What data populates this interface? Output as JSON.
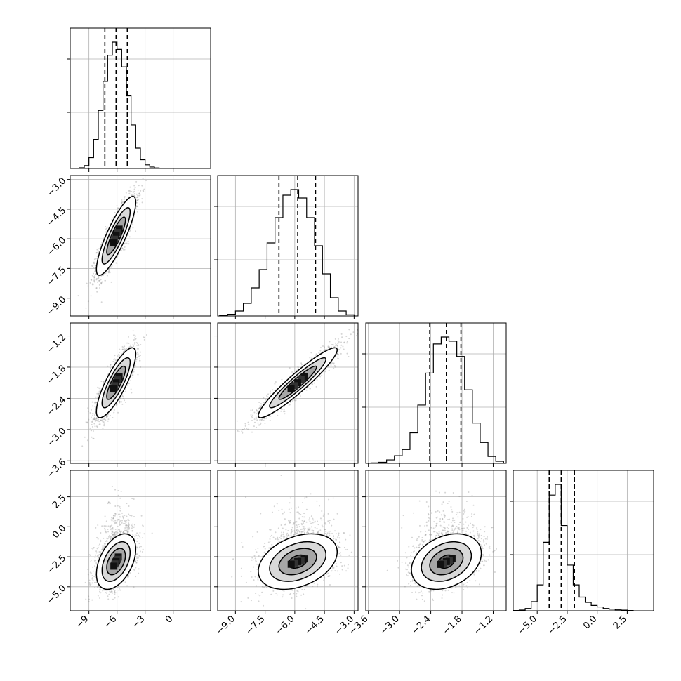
{
  "chart_data": {
    "type": "corner",
    "grid": true,
    "scatter_color": "#888888",
    "contour_color": "#000000",
    "line_color": "#000000",
    "variables": [
      {
        "range": [
          -11,
          4
        ],
        "ticks": [
          -9,
          -6,
          -3,
          0
        ],
        "tick_labels": [
          "−9",
          "−6",
          "−3",
          "0"
        ],
        "quantiles": [
          -7.3,
          -6.1,
          -4.9
        ],
        "mean": -6.1,
        "sd": 1.0
      },
      {
        "range": [
          -9.9,
          -2.8
        ],
        "ticks": [
          -9.0,
          -7.5,
          -6.0,
          -4.5,
          -3.0
        ],
        "tick_labels": [
          "−9.0",
          "−7.5",
          "−6.0",
          "−4.5",
          "−3.0"
        ],
        "quantiles": [
          -6.8,
          -5.85,
          -4.95
        ],
        "mean": -5.85,
        "sd": 0.95
      },
      {
        "range": [
          -3.65,
          -0.95
        ],
        "ticks": [
          -3.6,
          -3.0,
          -2.4,
          -1.8,
          -1.2
        ],
        "tick_labels": [
          "−3.6",
          "−3.0",
          "−2.4",
          "−1.8",
          "−1.2"
        ],
        "quantiles": [
          -2.42,
          -2.1,
          -1.82
        ],
        "mean": -2.1,
        "sd": 0.32
      },
      {
        "range": [
          -7,
          4.7
        ],
        "ticks": [
          -5.0,
          -2.5,
          0.0,
          2.5
        ],
        "tick_labels": [
          "−5.0",
          "−2.5",
          "0.0",
          "2.5"
        ],
        "quantiles": [
          -4.0,
          -3.0,
          -1.9
        ],
        "mean": -2.9,
        "sd": 1.1
      }
    ],
    "panels": [
      {
        "row": 0,
        "col": 0,
        "type": "histogram",
        "bin_edges": [
          -10.5,
          -10,
          -9.5,
          -9,
          -8.5,
          -8,
          -7.5,
          -7,
          -6.5,
          -6,
          -5.5,
          -5,
          -4.5,
          -4,
          -3.5,
          -3,
          -2.5,
          -2,
          -1.5
        ],
        "counts": [
          1,
          5,
          20,
          75,
          200,
          400,
          600,
          780,
          870,
          820,
          700,
          500,
          300,
          140,
          60,
          25,
          10,
          4
        ]
      },
      {
        "row": 1,
        "col": 1,
        "type": "histogram",
        "bin_edges": [
          -9.8,
          -9.4,
          -9,
          -8.6,
          -8.2,
          -7.8,
          -7.4,
          -7,
          -6.6,
          -6.2,
          -5.8,
          -5.4,
          -5,
          -4.6,
          -4.2,
          -3.8,
          -3.4,
          -3
        ],
        "counts": [
          4,
          12,
          35,
          90,
          200,
          330,
          520,
          700,
          860,
          900,
          840,
          700,
          500,
          300,
          130,
          35,
          8
        ]
      },
      {
        "row": 2,
        "col": 2,
        "type": "histogram",
        "bin_edges": [
          -3.55,
          -3.4,
          -3.25,
          -3.1,
          -2.95,
          -2.8,
          -2.65,
          -2.5,
          -2.35,
          -2.2,
          -2.05,
          -1.9,
          -1.75,
          -1.6,
          -1.45,
          -1.3,
          -1.15,
          -1.0
        ],
        "counts": [
          3,
          8,
          25,
          55,
          100,
          220,
          420,
          650,
          860,
          910,
          880,
          770,
          530,
          290,
          150,
          50,
          15
        ]
      },
      {
        "row": 3,
        "col": 3,
        "type": "histogram",
        "bin_edges": [
          -7,
          -6.5,
          -6,
          -5.5,
          -5,
          -4.5,
          -4,
          -3.5,
          -3,
          -2.5,
          -2,
          -1.5,
          -1,
          -0.5,
          0,
          0.5,
          1,
          1.5,
          2,
          2.5,
          3
        ],
        "counts": [
          2,
          5,
          15,
          60,
          170,
          450,
          760,
          830,
          560,
          300,
          170,
          90,
          55,
          35,
          25,
          15,
          10,
          6,
          4,
          2
        ]
      }
    ]
  }
}
